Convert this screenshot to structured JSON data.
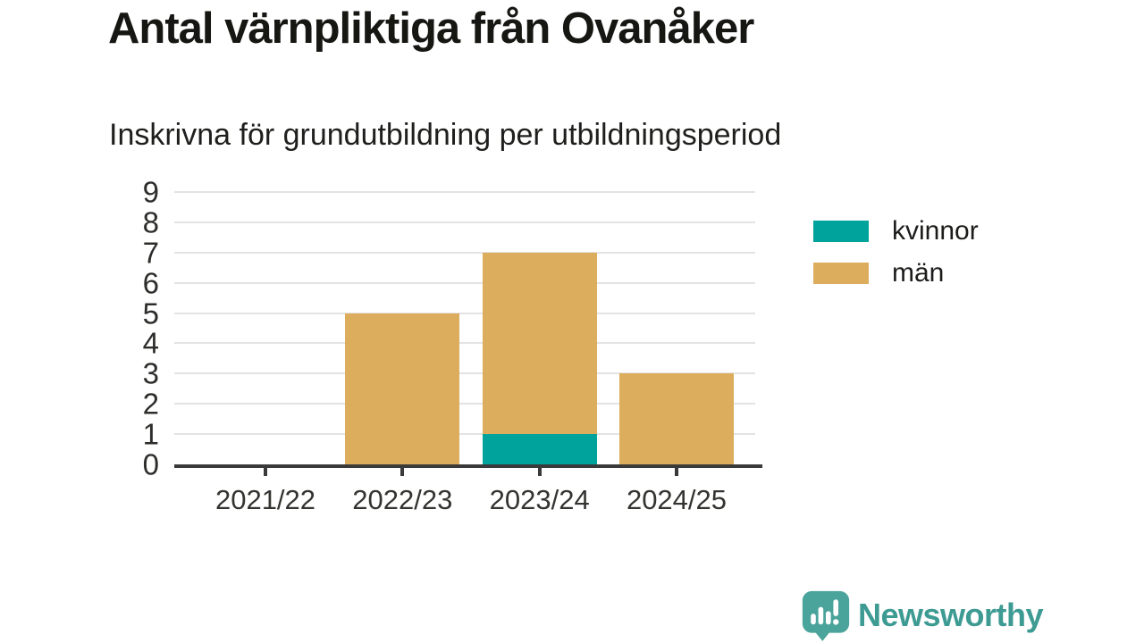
{
  "page": {
    "title": "Antal värnpliktiga från Ovanåker",
    "subtitle": "Inskrivna för grundutbildning per utbildningsperiod"
  },
  "chart_data": {
    "type": "bar",
    "stacked": true,
    "title": "Antal värnpliktiga från Ovanåker",
    "subtitle": "Inskrivna för grundutbildning per utbildningsperiod",
    "categories": [
      "2021/22",
      "2022/23",
      "2023/24",
      "2024/25"
    ],
    "series": [
      {
        "name": "kvinnor",
        "color": "#00A39B",
        "values": [
          0,
          0,
          1,
          0
        ]
      },
      {
        "name": "män",
        "color": "#DCAD5D",
        "values": [
          0,
          5,
          6,
          3
        ]
      }
    ],
    "totals": [
      0,
      5,
      7,
      3
    ],
    "xlabel": "",
    "ylabel": "",
    "ylim": [
      0,
      9
    ],
    "yticks": [
      0,
      1,
      2,
      3,
      4,
      5,
      6,
      7,
      8,
      9
    ],
    "grid": true,
    "legend_position": "right"
  },
  "legend": {
    "items": [
      {
        "label": "kvinnor",
        "color": "#00A39B"
      },
      {
        "label": "män",
        "color": "#DCAD5D"
      }
    ]
  },
  "branding": {
    "logo_text": "Newsworthy",
    "logo_color": "#3d9b93",
    "logo_icon": "newsworthy-speech-bubble-chart-icon",
    "logo_icon_color": "#4ba49b"
  },
  "colors": {
    "axis": "#3a3a3a",
    "gridline": "#e3e3e3",
    "title_text": "#161613",
    "background": "#ffffff"
  }
}
